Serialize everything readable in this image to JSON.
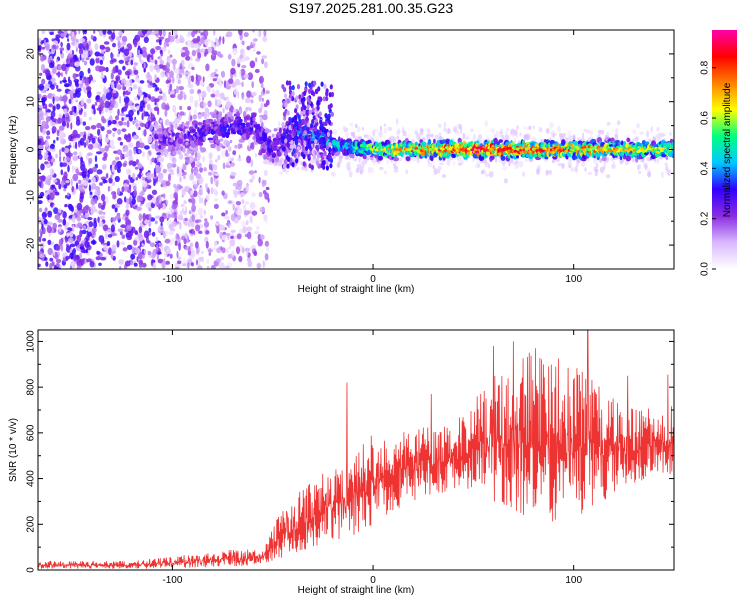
{
  "title": "S197.2025.281.00.35.G23",
  "chart_data": [
    {
      "type": "heatmap",
      "name": "spectrogram",
      "xlabel": "Height of straight line (km)",
      "ylabel": "Frequency (Hz)",
      "xlim": [
        -167,
        150
      ],
      "ylim": [
        -25,
        25
      ],
      "xticks": [
        -100,
        0,
        100
      ],
      "xtick_labels": [
        "-100",
        "0",
        "100"
      ],
      "yticks": [
        -20,
        -10,
        0,
        10,
        20
      ],
      "ytick_labels": [
        "-20",
        "-10",
        "0",
        "10",
        "20"
      ],
      "colorbar": {
        "label": "Normalized spectral amplitude",
        "range": [
          0,
          0.95
        ],
        "ticks": [
          0.0,
          0.2,
          0.4,
          0.6,
          0.8
        ],
        "tick_labels": [
          "0.0",
          "0.2",
          "0.4",
          "0.6",
          "0.8"
        ],
        "colormap": [
          "#ffffff",
          "#d9b8ff",
          "#8a2be2",
          "#3000ff",
          "#00c8ff",
          "#00ff80",
          "#ffff00",
          "#ff8000",
          "#ff0000",
          "#ff00aa"
        ]
      },
      "ridge": [
        {
          "x": -100,
          "freq": 2,
          "amp": 0.25
        },
        {
          "x": -80,
          "freq": 4,
          "amp": 0.3
        },
        {
          "x": -60,
          "freq": 5,
          "amp": 0.3
        },
        {
          "x": -50,
          "freq": 0,
          "amp": 0.3
        },
        {
          "x": -40,
          "freq": 4,
          "amp": 0.35
        },
        {
          "x": -20,
          "freq": 1,
          "amp": 0.45
        },
        {
          "x": 0,
          "freq": 0,
          "amp": 0.6
        },
        {
          "x": 20,
          "freq": 0,
          "amp": 0.75
        },
        {
          "x": 50,
          "freq": 0,
          "amp": 0.9
        },
        {
          "x": 90,
          "freq": 0,
          "amp": 0.8
        },
        {
          "x": 120,
          "freq": 0,
          "amp": 0.7
        },
        {
          "x": 150,
          "freq": 0,
          "amp": 0.6
        }
      ]
    },
    {
      "type": "line",
      "name": "snr",
      "xlabel": "Height of straight line (km)",
      "ylabel": "SNR (10 * v/v)",
      "xlim": [
        -167,
        150
      ],
      "ylim": [
        0,
        1050
      ],
      "xticks": [
        -100,
        0,
        100
      ],
      "xtick_labels": [
        "-100",
        "0",
        "100"
      ],
      "yticks": [
        0,
        200,
        400,
        600,
        800,
        1000
      ],
      "ytick_labels": [
        "0",
        "200",
        "400",
        "600",
        "800",
        "1000"
      ],
      "color": "#ee3333",
      "envelope": [
        {
          "x": -167,
          "low": 5,
          "high": 40
        },
        {
          "x": -120,
          "low": 5,
          "high": 40
        },
        {
          "x": -90,
          "low": 10,
          "high": 70
        },
        {
          "x": -70,
          "low": 15,
          "high": 90
        },
        {
          "x": -55,
          "low": 20,
          "high": 90
        },
        {
          "x": -45,
          "low": 50,
          "high": 280
        },
        {
          "x": -30,
          "low": 100,
          "high": 400
        },
        {
          "x": -10,
          "low": 150,
          "high": 500
        },
        {
          "x": 0,
          "low": 200,
          "high": 600
        },
        {
          "x": 20,
          "low": 300,
          "high": 620
        },
        {
          "x": 40,
          "low": 350,
          "high": 650
        },
        {
          "x": 60,
          "low": 300,
          "high": 850
        },
        {
          "x": 80,
          "low": 200,
          "high": 980
        },
        {
          "x": 100,
          "low": 200,
          "high": 900
        },
        {
          "x": 115,
          "low": 300,
          "high": 800
        },
        {
          "x": 130,
          "low": 380,
          "high": 700
        },
        {
          "x": 150,
          "low": 420,
          "high": 720
        }
      ],
      "peaks": [
        {
          "x": -43,
          "y": 250
        },
        {
          "x": -13,
          "y": 820
        },
        {
          "x": 29,
          "y": 770
        },
        {
          "x": 60,
          "y": 980
        },
        {
          "x": 70,
          "y": 1000
        },
        {
          "x": 107,
          "y": 1050
        },
        {
          "x": 127,
          "y": 850
        },
        {
          "x": 147,
          "y": 855
        }
      ]
    }
  ]
}
